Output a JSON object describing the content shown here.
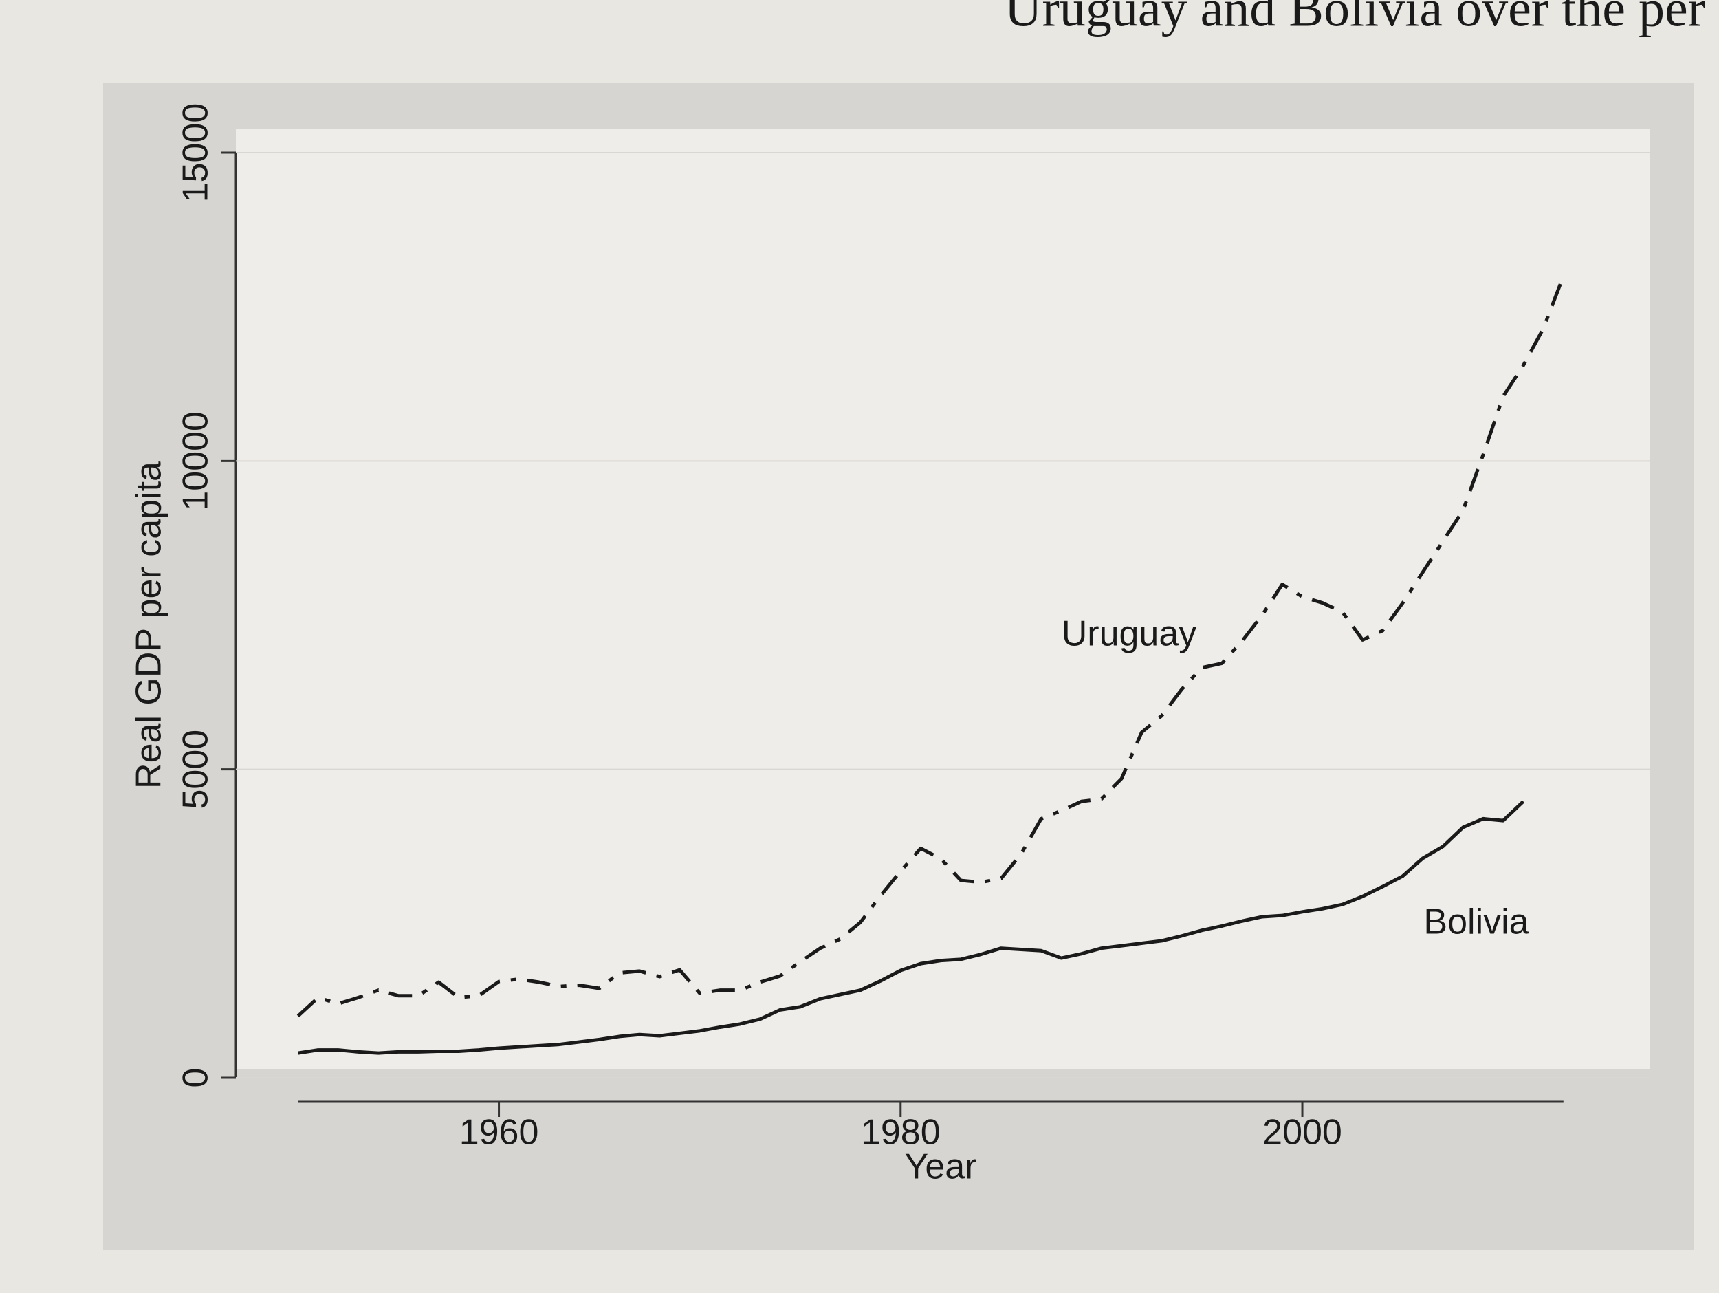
{
  "page_text": "Uruguay and Bolivia over the per",
  "chart_data": {
    "type": "line",
    "x_label": "Year",
    "y_label": "Real GDP per capita",
    "x": [
      1950,
      1951,
      1952,
      1953,
      1954,
      1955,
      1956,
      1957,
      1958,
      1959,
      1960,
      1961,
      1962,
      1963,
      1964,
      1965,
      1966,
      1967,
      1968,
      1969,
      1970,
      1971,
      1972,
      1973,
      1974,
      1975,
      1976,
      1977,
      1978,
      1979,
      1980,
      1981,
      1982,
      1983,
      1984,
      1985,
      1986,
      1987,
      1988,
      1989,
      1990,
      1991,
      1992,
      1993,
      1994,
      1995,
      1996,
      1997,
      1998,
      1999,
      2000,
      2001,
      2002,
      2003,
      2004,
      2005,
      2006,
      2007,
      2008,
      2009,
      2010,
      2011,
      2012,
      2013
    ],
    "series": [
      {
        "name": "Uruguay",
        "color": "#1a1a1a",
        "dash": "dotdash",
        "values": [
          1000,
          1300,
          1200,
          1300,
          1420,
          1330,
          1330,
          1550,
          1300,
          1330,
          1560,
          1600,
          1550,
          1480,
          1500,
          1450,
          1700,
          1730,
          1640,
          1750,
          1370,
          1420,
          1420,
          1550,
          1650,
          1880,
          2100,
          2250,
          2520,
          2950,
          3350,
          3720,
          3550,
          3200,
          3170,
          3230,
          3630,
          4200,
          4330,
          4480,
          4520,
          4850,
          5600,
          5870,
          6300,
          6650,
          6720,
          7080,
          7500,
          8000,
          7800,
          7700,
          7550,
          7100,
          7250,
          7700,
          8200,
          8700,
          9200,
          10100,
          11050,
          11550,
          12150,
          13000
        ]
      },
      {
        "name": "Bolivia",
        "color": "#1a1a1a",
        "dash": "solid",
        "values": [
          400,
          450,
          450,
          420,
          400,
          420,
          420,
          430,
          430,
          450,
          480,
          500,
          520,
          540,
          580,
          620,
          670,
          700,
          680,
          720,
          760,
          820,
          870,
          950,
          1100,
          1150,
          1280,
          1350,
          1420,
          1570,
          1740,
          1850,
          1900,
          1920,
          2000,
          2100,
          2080,
          2060,
          1940,
          2010,
          2100,
          2140,
          2180,
          2220,
          2300,
          2390,
          2460,
          2540,
          2610,
          2630,
          2690,
          2740,
          2810,
          2940,
          3100,
          3270,
          3560,
          3750,
          4060,
          4200,
          4170,
          4480,
          null,
          null
        ]
      }
    ],
    "xlim": [
      1948,
      2014
    ],
    "ylim": [
      0,
      15000
    ],
    "xticks": [
      1960,
      1980,
      2000
    ],
    "yticks": [
      0,
      5000,
      10000,
      15000
    ],
    "grid": true
  }
}
